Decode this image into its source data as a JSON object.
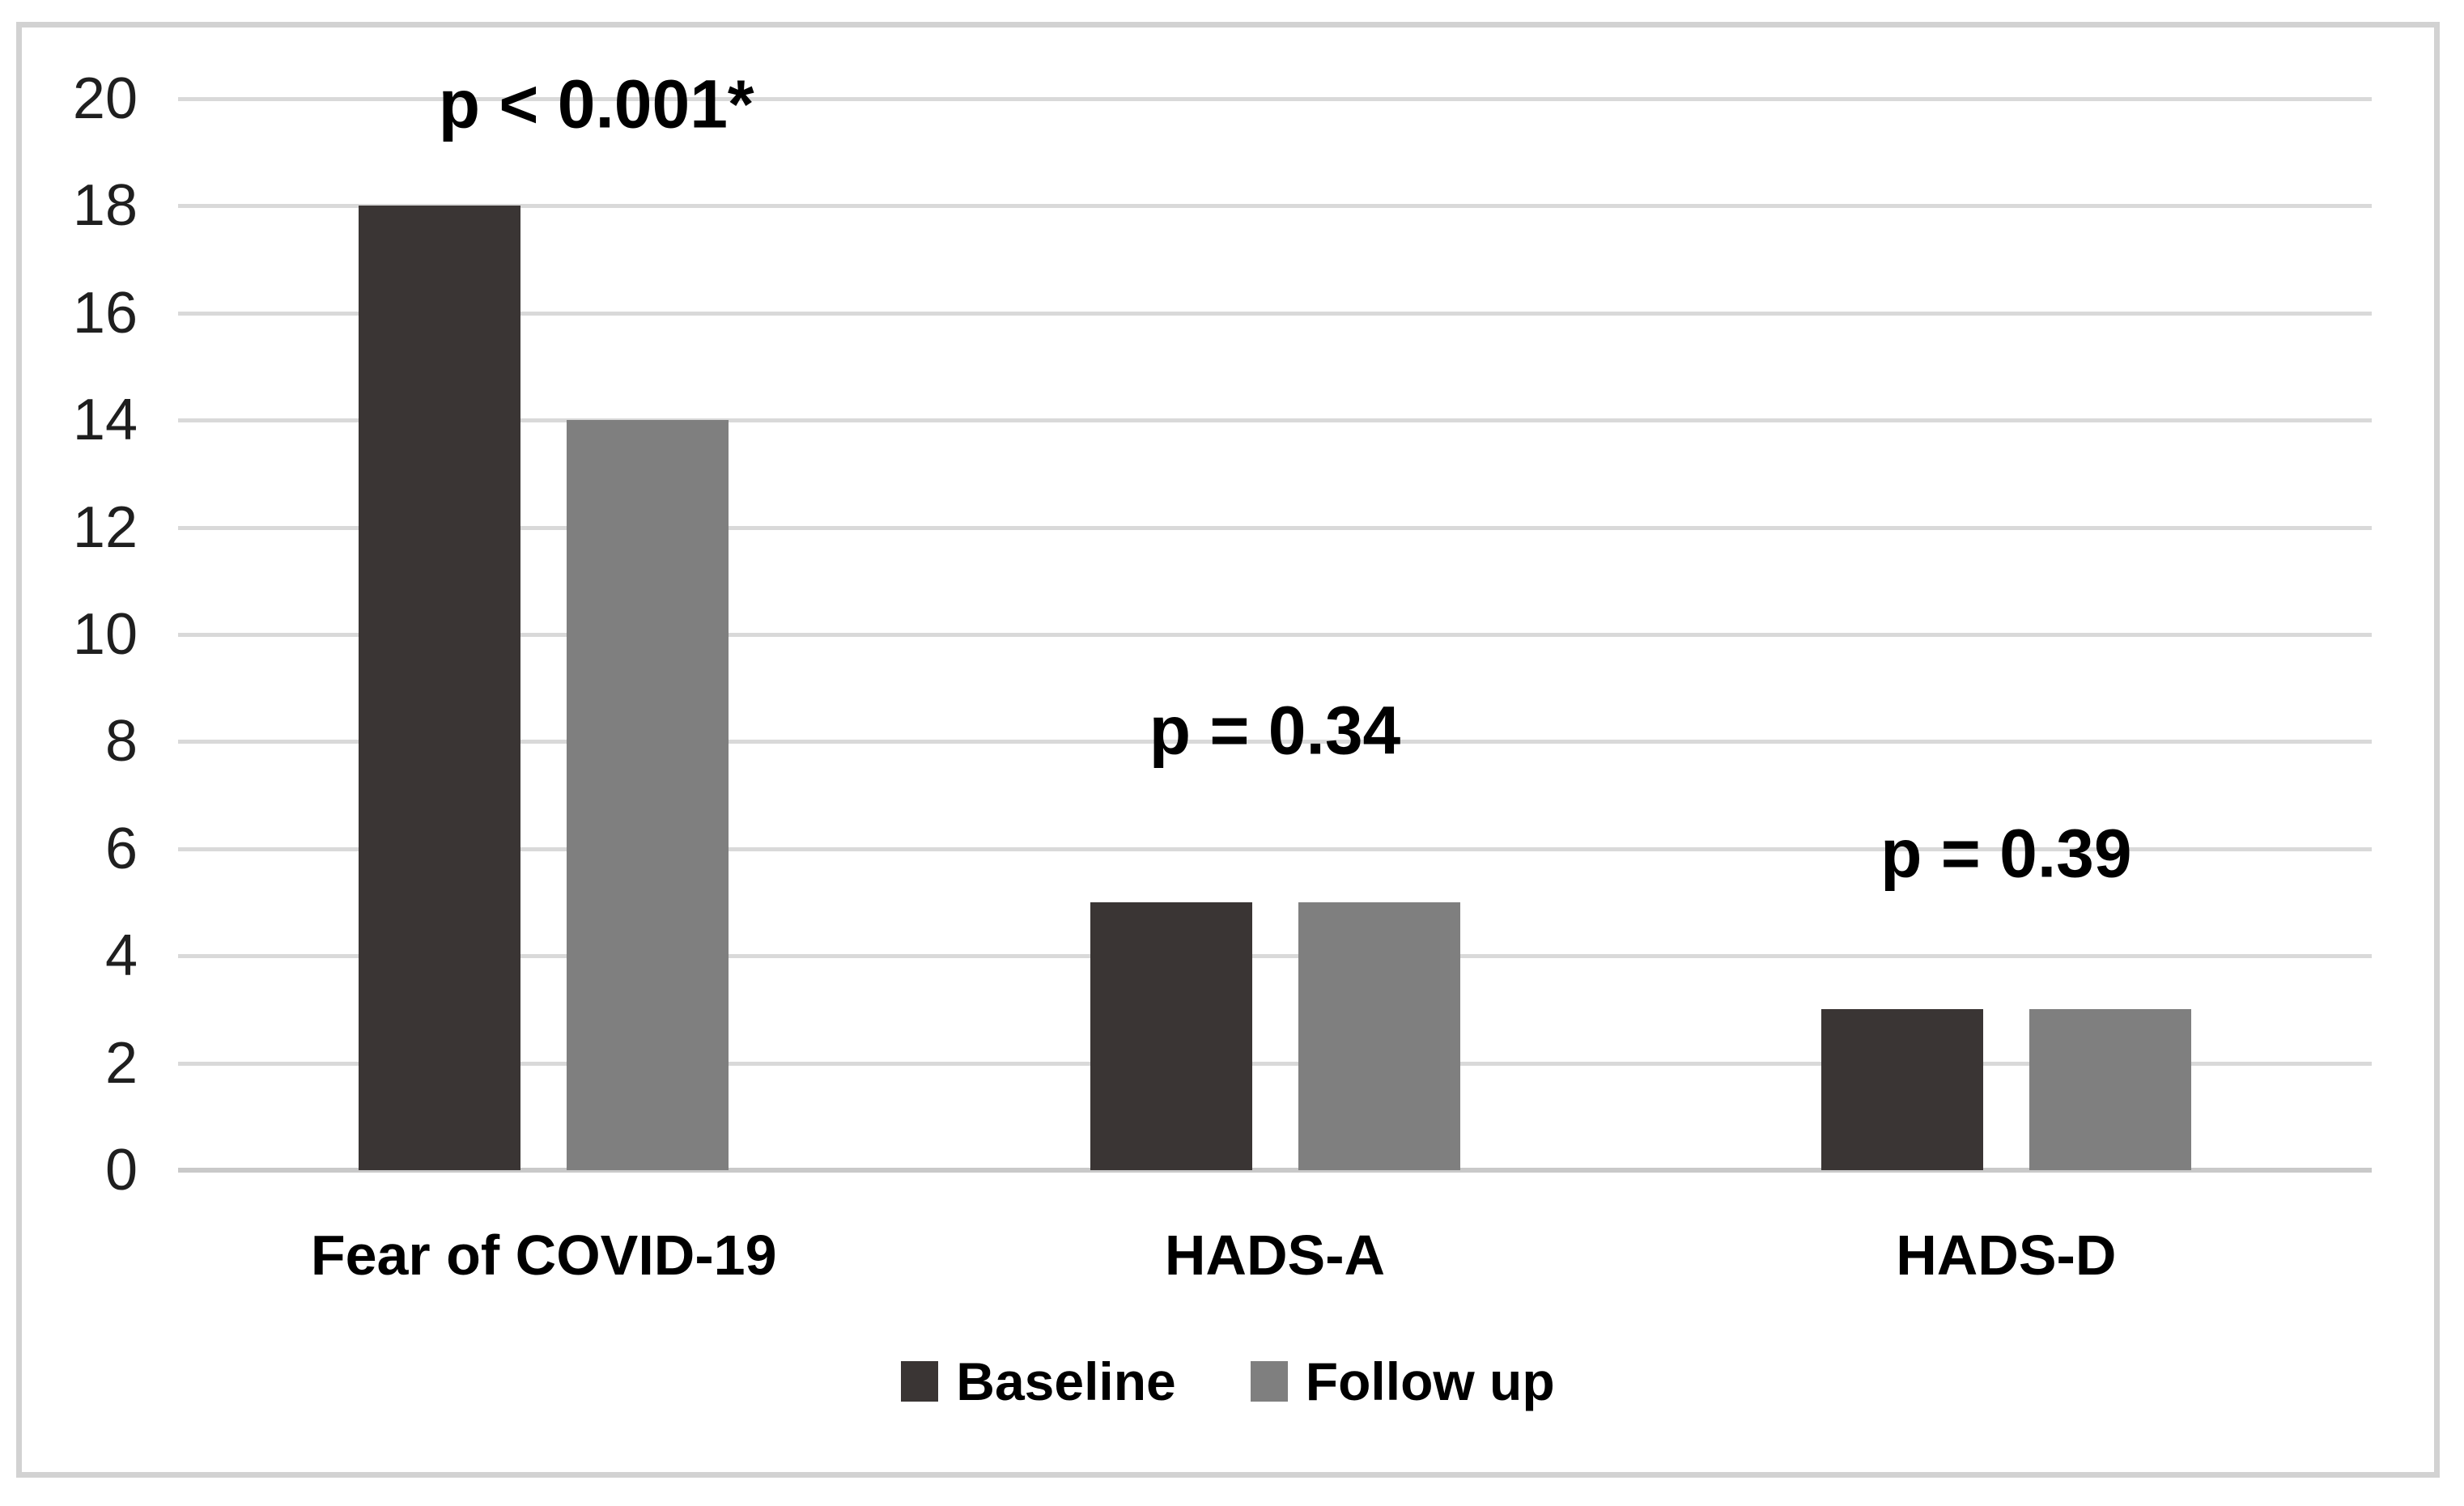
{
  "chart_data": {
    "type": "bar",
    "title": "",
    "xlabel": "",
    "ylabel": "",
    "categories": [
      "Fear of COVID-19",
      "HADS-A",
      "HADS-D"
    ],
    "series": [
      {
        "name": "Baseline",
        "color": "#3a3534",
        "values": [
          18,
          5,
          3
        ]
      },
      {
        "name": "Follow up",
        "color": "#7f7f7f",
        "values": [
          14,
          5,
          3
        ]
      }
    ],
    "annotations": [
      {
        "category": "Fear of COVID-19",
        "text": "p < 0.001*",
        "y_value": 19.9
      },
      {
        "category": "HADS-A",
        "text": "p = 0.34",
        "y_value": 8.2
      },
      {
        "category": "HADS-D",
        "text": "p = 0.39",
        "y_value": 5.9
      }
    ],
    "ylim": [
      0,
      20
    ],
    "y_tick_step": 2,
    "y_ticks": [
      0,
      2,
      4,
      6,
      8,
      10,
      12,
      14,
      16,
      18,
      20
    ],
    "grid": true,
    "gridline_color": "#d9d9d9",
    "axis_line_color": "#c9c9c9",
    "frame_color": "#d2d2d2",
    "legend_position": "bottom"
  }
}
